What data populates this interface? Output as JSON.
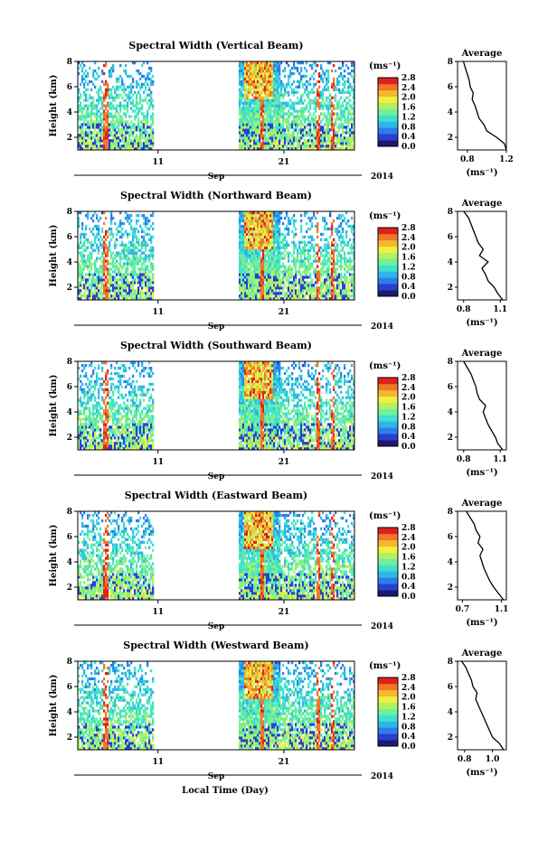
{
  "chart_data": [
    {
      "type": "heatmap",
      "title": "Spectral Width (Vertical Beam)",
      "ylabel": "Height (km)",
      "ylim": [
        1,
        8
      ],
      "y_ticks": [
        "2",
        "4",
        "6",
        "8"
      ],
      "x_ticks": [
        "11",
        "21"
      ],
      "month_label": "Sep",
      "year_label": "2014",
      "colorbar": {
        "unit": "(ms⁻¹)",
        "range": [
          0,
          2.8
        ],
        "ticks": [
          "0.0",
          "0.4",
          "0.8",
          "1.2",
          "1.6",
          "2.0",
          "2.4",
          "2.8"
        ]
      },
      "average": {
        "title": "Average",
        "xlabel": "(ms⁻¹)",
        "x_ticks": [
          "0.8",
          "1.2"
        ],
        "xlim": [
          0.7,
          1.2
        ],
        "ylim": [
          1,
          8
        ],
        "heights": [
          1.0,
          1.5,
          2.0,
          2.5,
          3.0,
          3.5,
          4.0,
          4.5,
          5.0,
          5.5,
          6.0,
          6.5,
          7.0,
          7.5,
          8.0
        ],
        "values": [
          1.2,
          1.18,
          1.1,
          1.0,
          0.97,
          0.92,
          0.9,
          0.88,
          0.85,
          0.86,
          0.83,
          0.82,
          0.8,
          0.78,
          0.76
        ]
      }
    },
    {
      "type": "heatmap",
      "title": "Spectral Width (Northward Beam)",
      "ylabel": "Height (km)",
      "ylim": [
        1,
        8
      ],
      "y_ticks": [
        "2",
        "4",
        "6",
        "8"
      ],
      "x_ticks": [
        "11",
        "21"
      ],
      "month_label": "Sep",
      "year_label": "2014",
      "colorbar": {
        "unit": "(ms⁻¹)",
        "range": [
          0,
          2.8
        ],
        "ticks": [
          "0.0",
          "0.4",
          "0.8",
          "1.2",
          "1.6",
          "2.0",
          "2.4",
          "2.8"
        ]
      },
      "average": {
        "title": "Average",
        "xlabel": "(ms⁻¹)",
        "x_ticks": [
          "0.8",
          "1.1"
        ],
        "xlim": [
          0.75,
          1.15
        ],
        "ylim": [
          1,
          8
        ],
        "heights": [
          1.0,
          1.5,
          2.0,
          2.5,
          3.0,
          3.5,
          4.0,
          4.5,
          5.0,
          5.5,
          6.0,
          6.5,
          7.0,
          7.5,
          8.0
        ],
        "values": [
          1.12,
          1.08,
          1.05,
          1.0,
          0.98,
          0.95,
          1.0,
          0.93,
          0.96,
          0.92,
          0.9,
          0.88,
          0.86,
          0.84,
          0.8
        ]
      }
    },
    {
      "type": "heatmap",
      "title": "Spectral Width (Southward Beam)",
      "ylabel": "Height (km)",
      "ylim": [
        1,
        8
      ],
      "y_ticks": [
        "2",
        "4",
        "6",
        "8"
      ],
      "x_ticks": [
        "11",
        "21"
      ],
      "month_label": "Sep",
      "year_label": "2014",
      "colorbar": {
        "unit": "(ms⁻¹)",
        "range": [
          0,
          2.8
        ],
        "ticks": [
          "0.0",
          "0.4",
          "0.8",
          "1.2",
          "1.6",
          "2.0",
          "2.4",
          "2.8"
        ]
      },
      "average": {
        "title": "Average",
        "xlabel": "(ms⁻¹)",
        "x_ticks": [
          "0.8",
          "1.1"
        ],
        "xlim": [
          0.75,
          1.15
        ],
        "ylim": [
          1,
          8
        ],
        "heights": [
          1.0,
          1.5,
          2.0,
          2.5,
          3.0,
          3.5,
          4.0,
          4.5,
          5.0,
          5.5,
          6.0,
          6.5,
          7.0,
          7.5,
          8.0
        ],
        "values": [
          1.12,
          1.08,
          1.06,
          1.03,
          1.0,
          0.98,
          0.96,
          0.98,
          0.93,
          0.91,
          0.9,
          0.88,
          0.86,
          0.83,
          0.8
        ]
      }
    },
    {
      "type": "heatmap",
      "title": "Spectral Width (Eastward Beam)",
      "ylabel": "Height (km)",
      "ylim": [
        1,
        8
      ],
      "y_ticks": [
        "2",
        "4",
        "6",
        "8"
      ],
      "x_ticks": [
        "11",
        "21"
      ],
      "month_label": "Sep",
      "year_label": "2014",
      "colorbar": {
        "unit": "(ms⁻¹)",
        "range": [
          0,
          2.8
        ],
        "ticks": [
          "0.0",
          "0.4",
          "0.8",
          "1.2",
          "1.6",
          "2.0",
          "2.4",
          "2.8"
        ]
      },
      "average": {
        "title": "Average",
        "xlabel": "(ms⁻¹)",
        "x_ticks": [
          "0.7",
          "1.1"
        ],
        "xlim": [
          0.65,
          1.15
        ],
        "ylim": [
          1,
          8
        ],
        "heights": [
          1.0,
          1.5,
          2.0,
          2.5,
          3.0,
          3.5,
          4.0,
          4.5,
          5.0,
          5.5,
          6.0,
          6.5,
          7.0,
          7.5,
          8.0
        ],
        "values": [
          1.12,
          1.07,
          1.02,
          0.98,
          0.95,
          0.92,
          0.9,
          0.88,
          0.91,
          0.86,
          0.88,
          0.84,
          0.82,
          0.78,
          0.74
        ]
      }
    },
    {
      "type": "heatmap",
      "title": "Spectral Width (Westward Beam)",
      "ylabel": "Height (km)",
      "xlabel": "Local Time (Day)",
      "ylim": [
        1,
        8
      ],
      "y_ticks": [
        "2",
        "4",
        "6",
        "8"
      ],
      "x_ticks": [
        "11",
        "21"
      ],
      "month_label": "Sep",
      "year_label": "2014",
      "colorbar": {
        "unit": "(ms⁻¹)",
        "range": [
          0,
          2.8
        ],
        "ticks": [
          "0.0",
          "0.4",
          "0.8",
          "1.2",
          "1.6",
          "2.0",
          "2.4",
          "2.8"
        ]
      },
      "average": {
        "title": "Average",
        "xlabel": "(ms⁻¹)",
        "x_ticks": [
          "0.8",
          "1.0"
        ],
        "xlim": [
          0.75,
          1.1
        ],
        "ylim": [
          1,
          8
        ],
        "heights": [
          1.0,
          1.5,
          2.0,
          2.5,
          3.0,
          3.5,
          4.0,
          4.5,
          5.0,
          5.5,
          6.0,
          6.5,
          7.0,
          7.5,
          8.0
        ],
        "values": [
          1.08,
          1.05,
          1.0,
          0.98,
          0.96,
          0.94,
          0.92,
          0.9,
          0.88,
          0.89,
          0.86,
          0.85,
          0.83,
          0.81,
          0.78
        ]
      }
    }
  ],
  "colors": {
    "colormap": [
      "#1a1a6e",
      "#2b3fd1",
      "#2d7ee8",
      "#30b5e8",
      "#3fe0d0",
      "#6ff09a",
      "#b4f060",
      "#f0f040",
      "#f5b630",
      "#f07828",
      "#e0201c"
    ]
  }
}
